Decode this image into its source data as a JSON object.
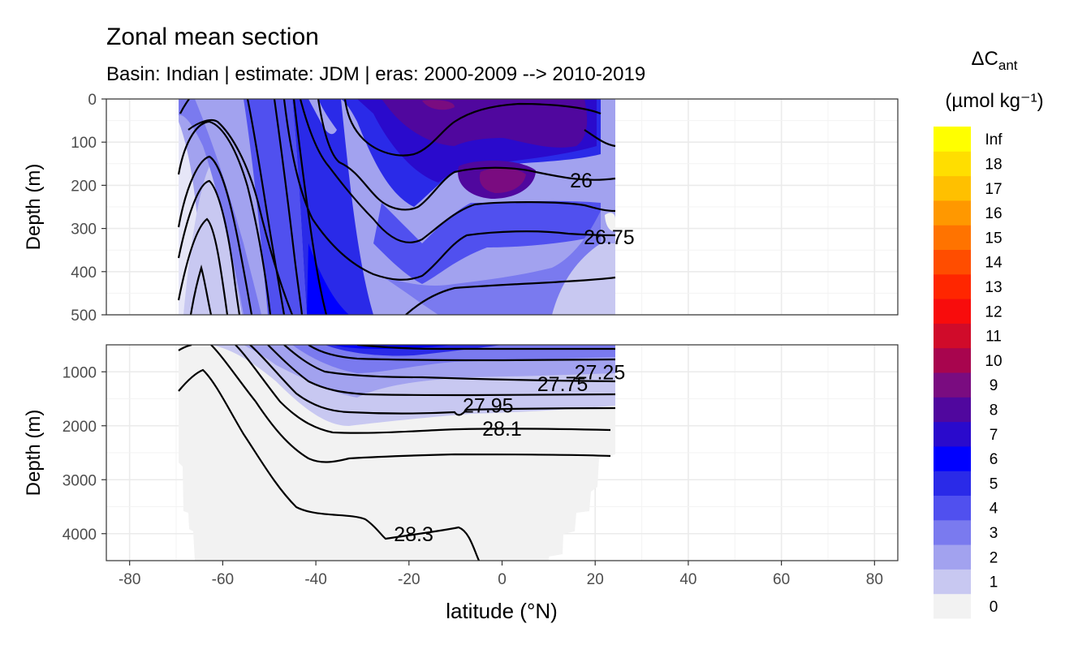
{
  "chart_data": {
    "type": "heatmap",
    "title": "Zonal mean section",
    "subtitle": "Basin: Indian | estimate: JDM  | eras: 2000-2009 --> 2010-2019",
    "xlabel": "latitude (°N)",
    "ylabel": "Depth (m)",
    "x_ticks": [
      -80,
      -60,
      -40,
      -20,
      0,
      20,
      40,
      60,
      80
    ],
    "xlim": [
      -85,
      85
    ],
    "grid": true,
    "legend_position": "right",
    "legend_title_main": "ΔC",
    "legend_title_sub": "ant",
    "legend_unit": "(µmol kg⁻¹)",
    "legend": [
      {
        "label": "0",
        "color": "#f2f2f2"
      },
      {
        "label": "1",
        "color": "#c8c8f1"
      },
      {
        "label": "2",
        "color": "#a2a2ef"
      },
      {
        "label": "3",
        "color": "#7a7aef"
      },
      {
        "label": "4",
        "color": "#5050ef"
      },
      {
        "label": "5",
        "color": "#2a2ae8"
      },
      {
        "label": "6",
        "color": "#0000ff"
      },
      {
        "label": "7",
        "color": "#2a0acc"
      },
      {
        "label": "8",
        "color": "#50079e"
      },
      {
        "label": "9",
        "color": "#7a0c80"
      },
      {
        "label": "10",
        "color": "#a8054e"
      },
      {
        "label": "11",
        "color": "#d00b2a"
      },
      {
        "label": "12",
        "color": "#f80c0c"
      },
      {
        "label": "13",
        "color": "#ff2600"
      },
      {
        "label": "14",
        "color": "#ff4d00"
      },
      {
        "label": "15",
        "color": "#ff7300"
      },
      {
        "label": "16",
        "color": "#ff9800"
      },
      {
        "label": "17",
        "color": "#ffc000"
      },
      {
        "label": "18",
        "color": "#ffde00"
      },
      {
        "label": "Inf",
        "color": "#ffff00"
      }
    ],
    "panels": [
      {
        "name": "upper",
        "y_ticks": [
          0,
          100,
          200,
          300,
          400,
          500
        ],
        "ylim": [
          500,
          0
        ],
        "isopycnal_labels": [
          {
            "text": "26",
            "lat": 17,
            "depth": 188
          },
          {
            "text": "26.75",
            "lat": 23,
            "depth": 320
          }
        ]
      },
      {
        "name": "lower",
        "y_ticks": [
          1000,
          2000,
          3000,
          4000
        ],
        "ylim": [
          4500,
          500
        ],
        "isopycnal_labels": [
          {
            "text": "27.25",
            "lat": 21,
            "depth": 1000
          },
          {
            "text": "27.75",
            "lat": 13,
            "depth": 1220
          },
          {
            "text": "27.95",
            "lat": -3,
            "depth": 1620
          },
          {
            "text": "28.1",
            "lat": 0,
            "depth": 2050
          },
          {
            "text": "28.3",
            "lat": -19,
            "depth": 4000
          }
        ]
      }
    ]
  }
}
